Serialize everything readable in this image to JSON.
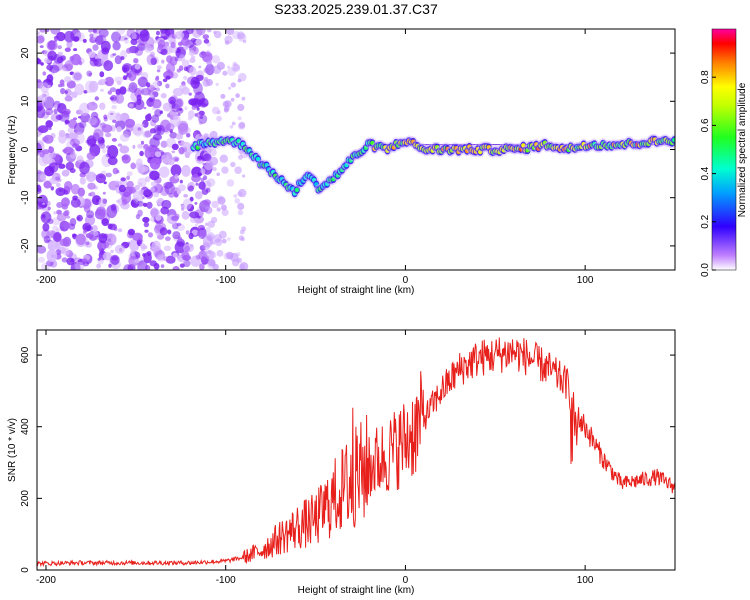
{
  "chart_data": [
    {
      "type": "heatmap",
      "title": "S233.2025.239.01.37.C37",
      "xlabel": "Height of straight line (km)",
      "ylabel": "Frequency (Hz)",
      "xlim": [
        -205,
        150
      ],
      "ylim": [
        -25,
        25
      ],
      "xticks": [
        -200,
        -100,
        0,
        100
      ],
      "yticks": [
        -20,
        -10,
        0,
        10,
        20
      ],
      "colorbar": {
        "label": "Normalized spectral amplitude",
        "range": [
          0,
          1
        ],
        "ticks": [
          0.0,
          0.2,
          0.4,
          0.6,
          0.8
        ]
      },
      "ridge": {
        "x": [
          -115,
          -100,
          -90,
          -80,
          -70,
          -62,
          -55,
          -48,
          -40,
          -30,
          -20,
          -10,
          0,
          10,
          20,
          40,
          60,
          80,
          90,
          100,
          120,
          150
        ],
        "y": [
          1,
          2,
          1,
          -3,
          -6,
          -9,
          -5,
          -8,
          -6,
          -2,
          1,
          0,
          2,
          0,
          0,
          0,
          0,
          1,
          0,
          1,
          1,
          2
        ]
      }
    },
    {
      "type": "line",
      "xlabel": "Height of straight line (km)",
      "ylabel": "SNR (10 * v/v)",
      "xlim": [
        -205,
        150
      ],
      "ylim": [
        0,
        670
      ],
      "xticks": [
        -200,
        -100,
        0,
        100
      ],
      "yticks": [
        0,
        200,
        400,
        600
      ],
      "series": [
        {
          "name": "SNR",
          "color": "#e8201c",
          "x": [
            -205,
            -180,
            -150,
            -120,
            -100,
            -90,
            -80,
            -70,
            -60,
            -50,
            -40,
            -30,
            -20,
            -10,
            0,
            10,
            20,
            30,
            40,
            50,
            60,
            70,
            80,
            90,
            95,
            100,
            110,
            120,
            130,
            140,
            150
          ],
          "y": [
            18,
            20,
            20,
            20,
            25,
            35,
            55,
            90,
            120,
            140,
            200,
            250,
            290,
            320,
            360,
            420,
            500,
            560,
            590,
            600,
            610,
            590,
            560,
            520,
            430,
            400,
            310,
            240,
            250,
            260,
            230
          ]
        }
      ]
    }
  ]
}
